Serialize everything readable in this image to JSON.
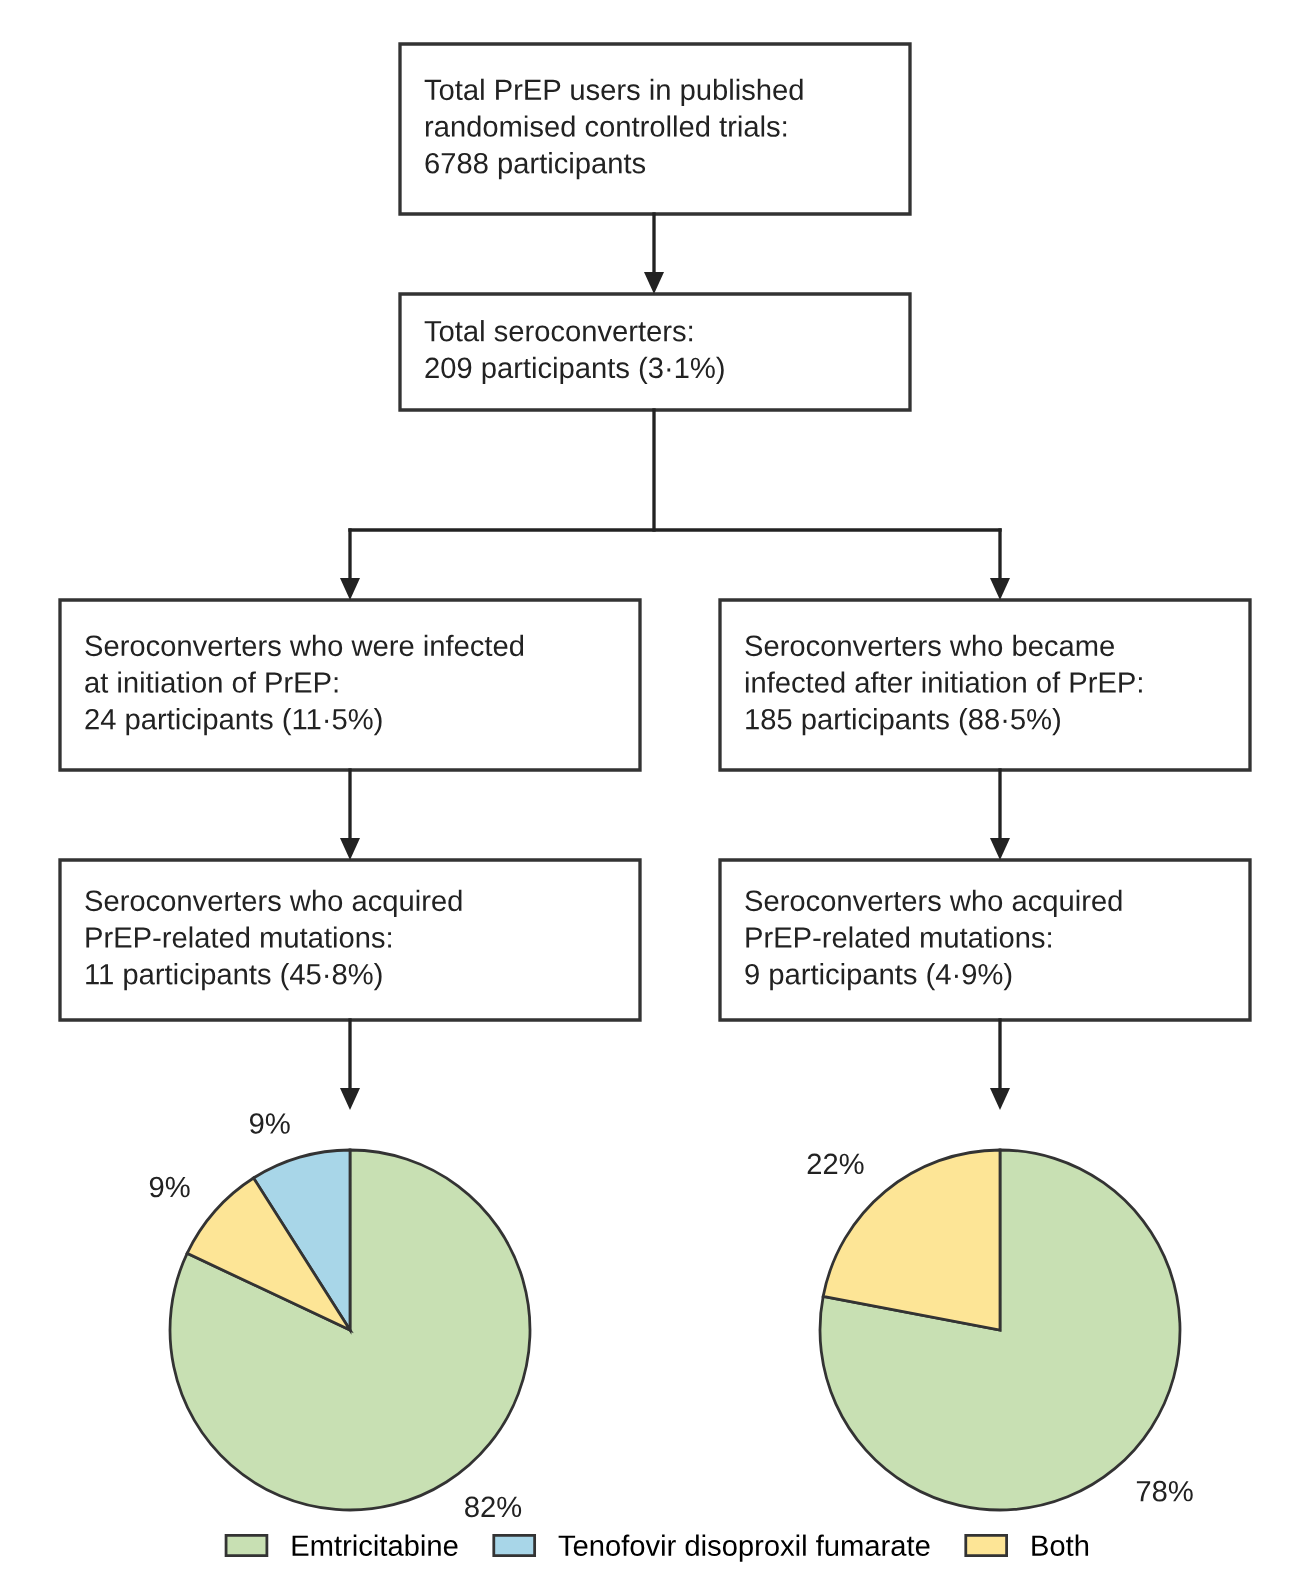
{
  "chart_data": [
    {
      "type": "other",
      "annotations": [
        "Total PrEP users in published\nrandomised controlled trials:\n6788 participants",
        "Total seroconverters:\n209 participants (3·1%)",
        "Seroconverters who were infected\nat initiation of PrEP:\n24 participants (11·5%)",
        "Seroconverters who became\ninfected after initiation of PrEP:\n185 participants (88·5%)",
        "Seroconverters who acquired\nPrEP-related mutations:\n11 participants (45·8%)",
        "Seroconverters who acquired\nPrEP-related mutations:\n9 participants (4·9%)"
      ]
    },
    {
      "type": "pie",
      "categories": [
        "Emtricitabine",
        "Tenofovir disoproxil fumarate",
        "Both"
      ],
      "values": [
        82,
        9,
        9
      ],
      "colors": [
        "#c8e0b3",
        "#a8d6e8",
        "#fde596"
      ],
      "value_labels": [
        "82%",
        "9%",
        "9%"
      ],
      "legend": "bottom"
    },
    {
      "type": "pie",
      "categories": [
        null,
        null
      ],
      "values": [
        78,
        22
      ],
      "colors": [
        "#c8e0b3",
        "#fde596"
      ],
      "value_labels": [
        "78%",
        "22%"
      ]
    }
  ]
}
